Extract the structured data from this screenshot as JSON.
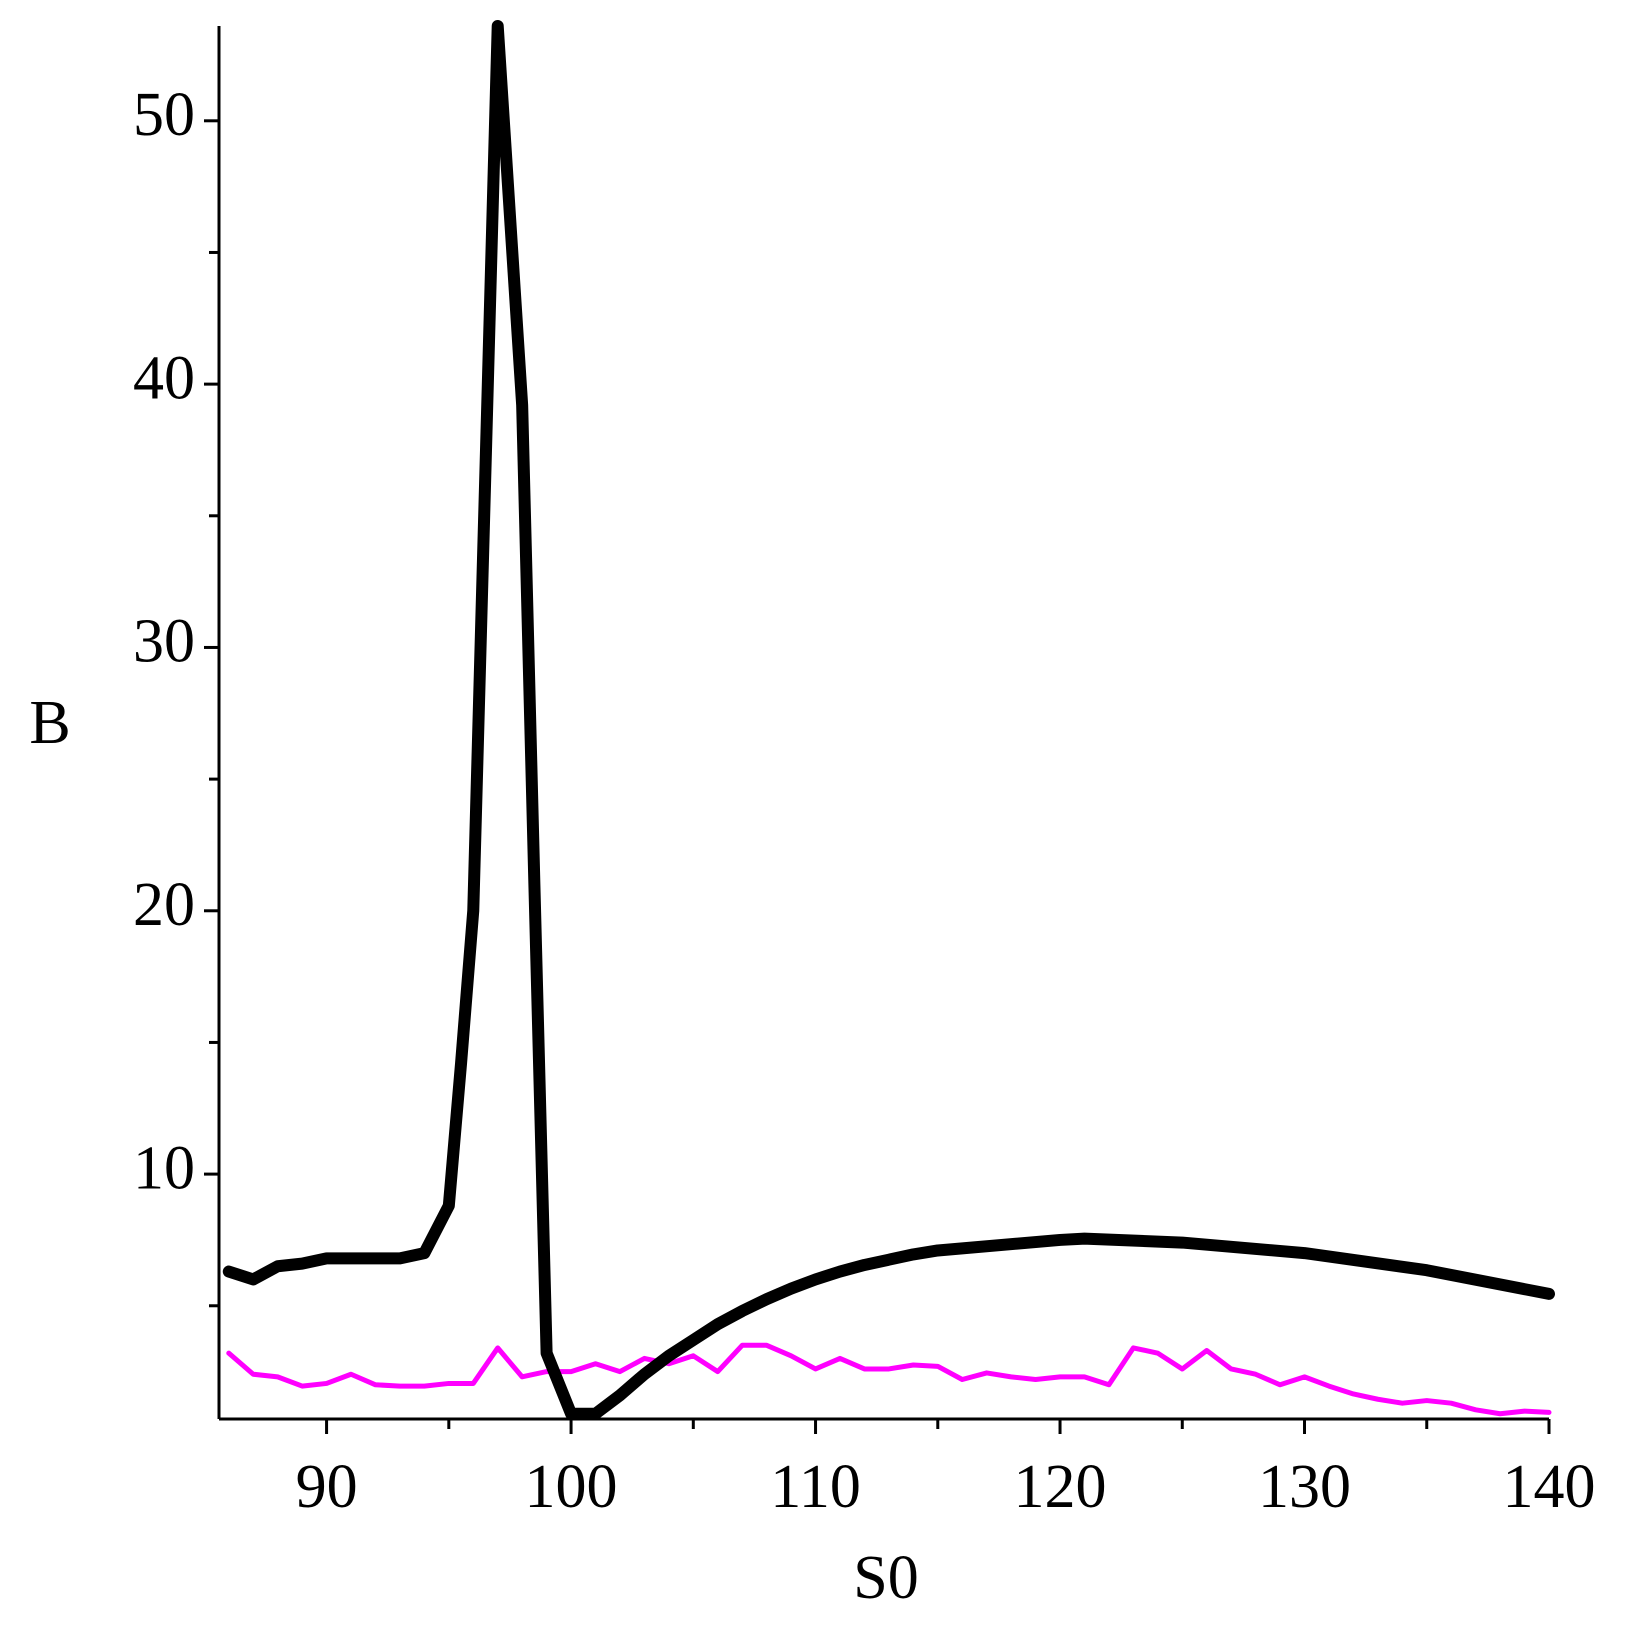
{
  "chart_data": {
    "type": "line",
    "x_label": "S0",
    "y_label": "B",
    "xlim": [
      85.6,
      140
    ],
    "xticks": [
      90,
      100,
      110,
      120,
      130,
      140
    ],
    "x_minor_ticks": [
      95,
      105,
      115,
      125,
      135
    ],
    "ylim": [
      0.7,
      53.6
    ],
    "yticks": [
      10,
      20,
      30,
      40,
      50
    ],
    "y_minor_ticks": [
      5,
      15,
      25,
      35,
      45
    ],
    "series": [
      {
        "color": "#000000",
        "line_width": 12,
        "x": [
          86,
          87,
          88,
          89,
          90,
          91,
          92,
          93,
          94,
          95,
          95.5,
          96,
          97,
          98,
          98.5,
          99,
          100,
          101,
          102,
          103,
          104,
          105,
          106,
          107,
          108,
          109,
          110,
          111,
          112,
          113,
          114,
          115,
          120,
          121,
          125,
          130,
          135,
          140
        ],
        "values": [
          6.3,
          6.0,
          6.5,
          6.6,
          6.8,
          6.8,
          6.8,
          6.8,
          7.0,
          8.8,
          14.2,
          20,
          53.6,
          39.2,
          21,
          3.2,
          0.9,
          0.9,
          1.6,
          2.4,
          3.1,
          3.7,
          4.3,
          4.8,
          5.25,
          5.65,
          6.0,
          6.3,
          6.55,
          6.75,
          6.95,
          7.1,
          7.5,
          7.55,
          7.4,
          7.0,
          6.35,
          5.45
        ]
      },
      {
        "color": "#ff00ff",
        "line_width": 5,
        "x": [
          86,
          87,
          88,
          89,
          90,
          91,
          92,
          93,
          94,
          95,
          96,
          97,
          98,
          99,
          100,
          101,
          102,
          103,
          104,
          105,
          106,
          107,
          108,
          109,
          110,
          111,
          112,
          113,
          114,
          115,
          116,
          117,
          118,
          119,
          120,
          121,
          122,
          123,
          124,
          125,
          126,
          127,
          128,
          129,
          130,
          131,
          132,
          133,
          134,
          135,
          136,
          137,
          138,
          139,
          140
        ],
        "values": [
          3.2,
          2.4,
          2.3,
          1.95,
          2.05,
          2.4,
          2.0,
          1.95,
          1.95,
          2.05,
          2.05,
          3.4,
          2.3,
          2.5,
          2.5,
          2.8,
          2.5,
          3.0,
          2.8,
          3.1,
          2.5,
          3.5,
          3.5,
          3.1,
          2.6,
          3.0,
          2.6,
          2.6,
          2.75,
          2.7,
          2.2,
          2.45,
          2.3,
          2.2,
          2.3,
          2.3,
          2.0,
          3.4,
          3.2,
          2.6,
          3.3,
          2.6,
          2.4,
          2.0,
          2.3,
          1.95,
          1.65,
          1.45,
          1.3,
          1.4,
          1.3,
          1.05,
          0.9,
          1.0,
          0.95
        ]
      }
    ]
  }
}
